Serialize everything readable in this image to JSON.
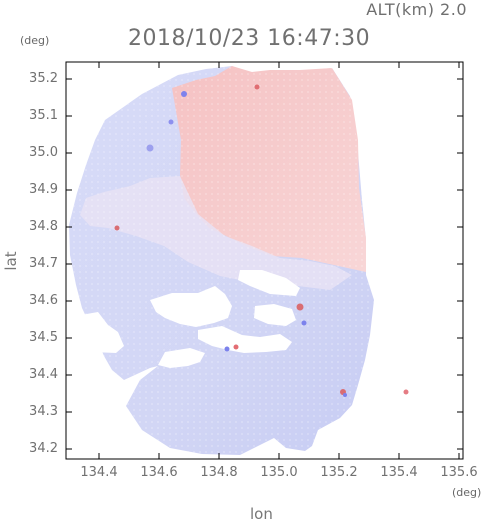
{
  "header": {
    "altitude": "ALT(km)  2.0",
    "timestamp": "2018/10/23 16:47:30"
  },
  "axes": {
    "y_unit": "(deg)",
    "x_unit": "(deg)",
    "y_label": "lat",
    "x_label": "lon",
    "y_ticks": [
      "35.2",
      "35.1",
      "35.0",
      "34.9",
      "34.8",
      "34.7",
      "34.6",
      "34.5",
      "34.4",
      "34.3",
      "34.2"
    ],
    "x_ticks": [
      "134.4",
      "134.6",
      "134.8",
      "135.0",
      "135.2",
      "135.4",
      "135.6"
    ]
  },
  "colors": {
    "positive": "#f7c7c8",
    "positive_strong": "#f29ea1",
    "negative": "#d8dbf6",
    "negative_strong": "#b8bcf0",
    "frame": "#000000"
  }
}
